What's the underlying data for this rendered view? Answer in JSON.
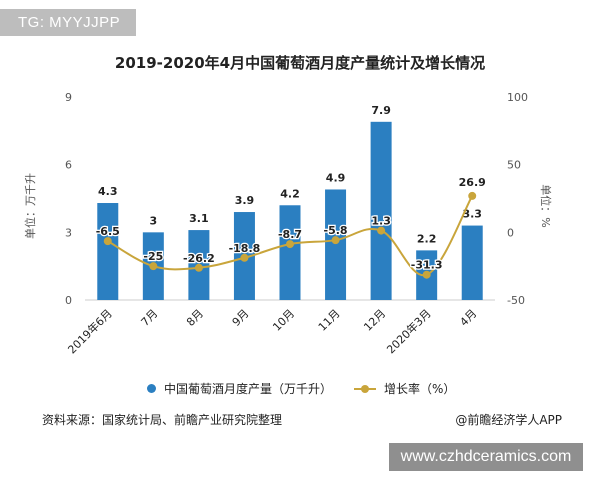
{
  "tag": "TG: MYYJJPP",
  "watermark": "www.czhdceramics.com",
  "footer": {
    "source": "资料来源：国家统计局、前瞻产业研究院整理",
    "credit": "@前瞻经济学人APP"
  },
  "colors": {
    "bar": "#2b7fc1",
    "line": "#c9a53b",
    "axis": "#cccccc",
    "text": "#222222",
    "tick": "#555555"
  },
  "chart_data": {
    "type": "bar",
    "title": "2019-2020年4月中国葡萄酒月度产量统计及增长情况",
    "categories": [
      "2019年6月",
      "7月",
      "8月",
      "9月",
      "10月",
      "11月",
      "12月",
      "2020年3月",
      "4月"
    ],
    "ylabel": "单位：万千升",
    "y2label": "单位：%",
    "ylim": [
      0,
      9
    ],
    "yticks": [
      "0",
      "3",
      "6",
      "9"
    ],
    "y2lim": [
      -50,
      100
    ],
    "y2ticks": [
      "-50",
      "0",
      "50",
      "100"
    ],
    "legend_position": "bottom",
    "series": [
      {
        "name": "中国葡萄酒月度产量（万千升）",
        "type": "bar",
        "axis": "left",
        "values": [
          4.3,
          3,
          3.1,
          3.9,
          4.2,
          4.9,
          7.9,
          2.2,
          3.3
        ],
        "labels": [
          "4.3",
          "3",
          "3.1",
          "3.9",
          "4.2",
          "4.9",
          "7.9",
          "2.2",
          "3.3"
        ]
      },
      {
        "name": "增长率（%）",
        "type": "line",
        "axis": "right",
        "values": [
          -6.5,
          -25,
          -26.2,
          -18.8,
          -8.7,
          -5.8,
          1.3,
          -31.3,
          26.9
        ],
        "labels": [
          "-6.5",
          "-25",
          "-26.2",
          "-18.8",
          "-8.7",
          "-5.8",
          "1.3",
          "-31.3",
          "26.9"
        ]
      }
    ]
  }
}
